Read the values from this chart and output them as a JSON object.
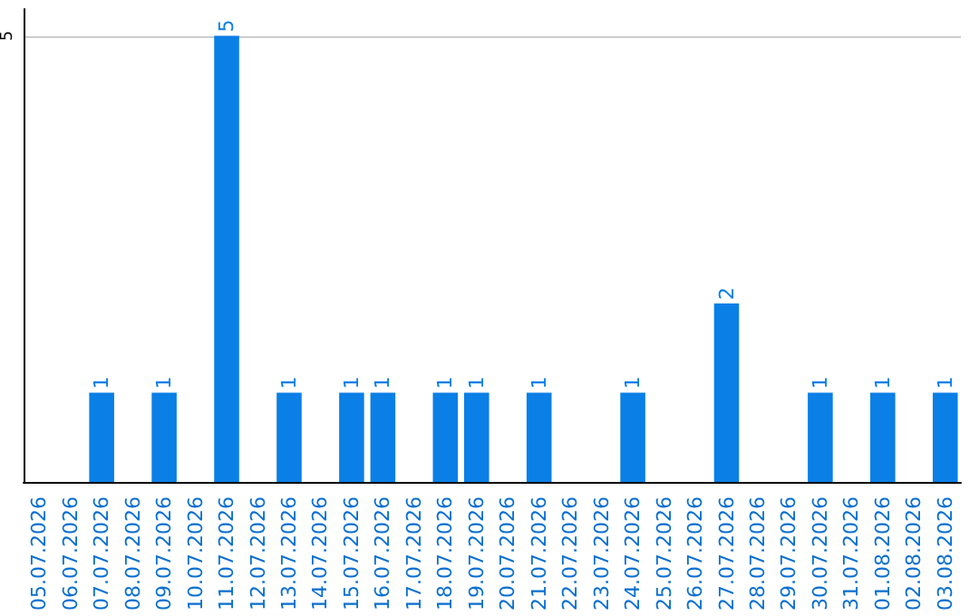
{
  "chart_data": {
    "type": "bar",
    "categories": [
      "05.07.2026",
      "06.07.2026",
      "07.07.2026",
      "08.07.2026",
      "09.07.2026",
      "10.07.2026",
      "11.07.2026",
      "12.07.2026",
      "13.07.2026",
      "14.07.2026",
      "15.07.2026",
      "16.07.2026",
      "17.07.2026",
      "18.07.2026",
      "19.07.2026",
      "20.07.2026",
      "21.07.2026",
      "22.07.2026",
      "23.07.2026",
      "24.07.2026",
      "25.07.2026",
      "26.07.2026",
      "27.07.2026",
      "28.07.2026",
      "29.07.2026",
      "30.07.2026",
      "31.07.2026",
      "01.08.2026",
      "02.08.2026",
      "03.08.2026"
    ],
    "values": [
      0,
      0,
      1,
      0,
      1,
      0,
      5,
      0,
      1,
      0,
      1,
      1,
      0,
      1,
      1,
      0,
      1,
      0,
      0,
      1,
      0,
      0,
      2,
      0,
      0,
      1,
      0,
      1,
      0,
      1
    ],
    "value_labels": [
      null,
      null,
      "1",
      null,
      "1",
      null,
      "5",
      null,
      "1",
      null,
      "1",
      "1",
      null,
      "1",
      "1",
      null,
      "1",
      null,
      null,
      "1",
      null,
      null,
      "2",
      null,
      null,
      "1",
      null,
      "1",
      null,
      "1"
    ],
    "color": "#0a7fe6",
    "ylim": [
      0,
      5.3
    ],
    "yticks": [
      5
    ],
    "grid": "y"
  }
}
